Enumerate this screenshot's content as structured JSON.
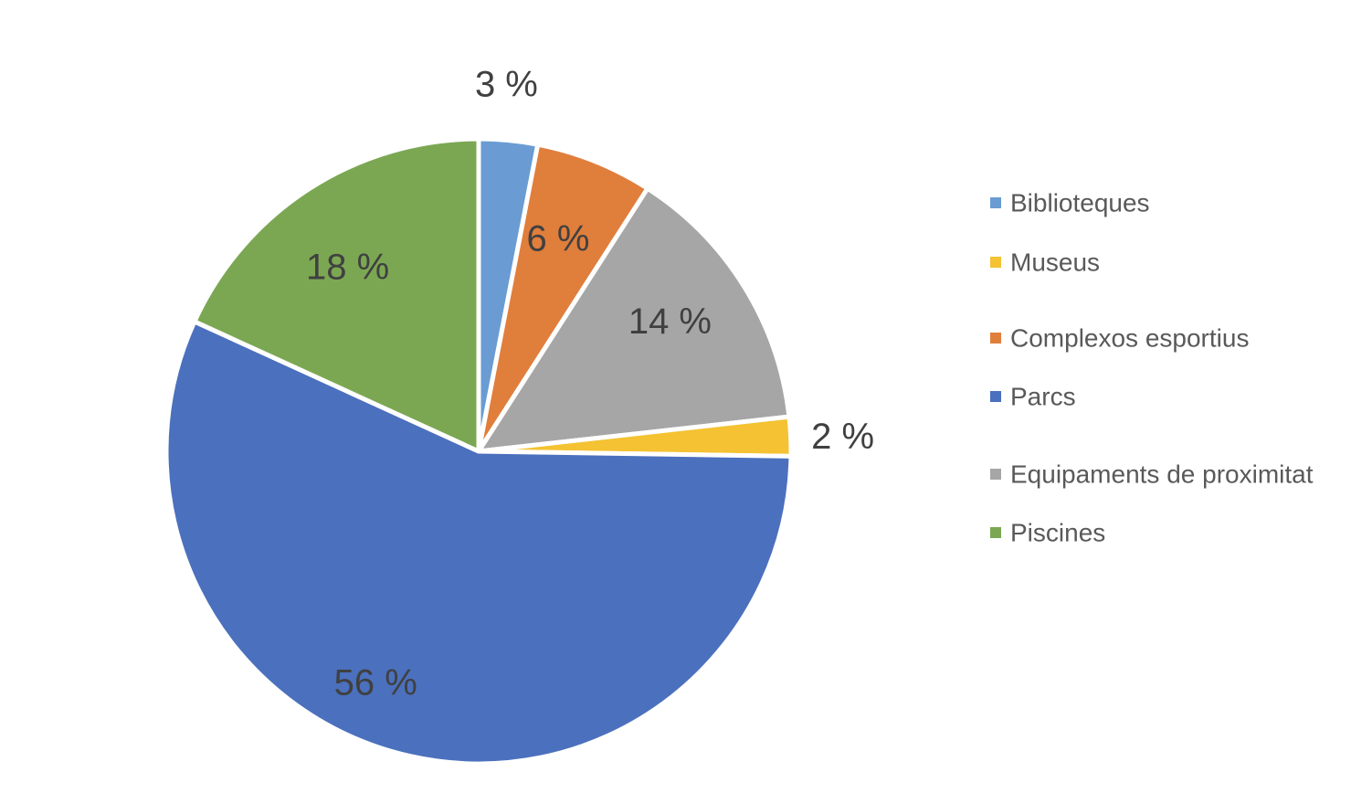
{
  "chart_data": {
    "type": "pie",
    "start_angle_deg": 0,
    "direction": "clockwise",
    "slices": [
      {
        "label": "Biblioteques",
        "value": 3,
        "value_label": "3 %",
        "color": "#6a9cd3",
        "label_position": "outside"
      },
      {
        "label": "Complexos esportius",
        "value": 6,
        "value_label": "6 %",
        "color": "#e07e3c",
        "label_position": "inside"
      },
      {
        "label": "Equipaments de proximitat",
        "value": 14,
        "value_label": "14 %",
        "color": "#a6a6a6",
        "label_position": "inside"
      },
      {
        "label": "Museus",
        "value": 2,
        "value_label": "2 %",
        "color": "#f4c232",
        "label_position": "outside"
      },
      {
        "label": "Parcs",
        "value": 56,
        "value_label": "56 %",
        "color": "#4b70bd",
        "label_position": "inside"
      },
      {
        "label": "Piscines",
        "value": 18,
        "value_label": "18 %",
        "color": "#7ba753",
        "label_position": "inside"
      }
    ],
    "legend": {
      "placement": "right",
      "items": [
        {
          "label": "Biblioteques",
          "color": "#6a9cd3"
        },
        {
          "label": "Museus",
          "color": "#f4c232"
        },
        {
          "label": "Complexos esportius",
          "color": "#e07e3c"
        },
        {
          "label": "Parcs",
          "color": "#4b70bd"
        },
        {
          "label": "Equipaments de proximitat",
          "color": "#a6a6a6"
        },
        {
          "label": "Piscines",
          "color": "#7ba753"
        }
      ]
    }
  }
}
